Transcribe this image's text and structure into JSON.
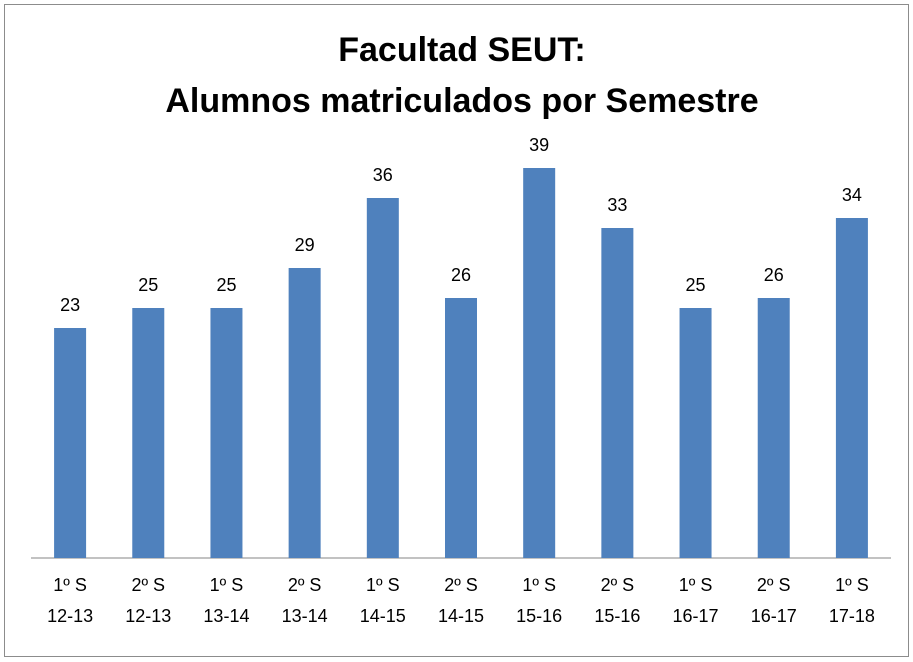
{
  "chart_data": {
    "type": "bar",
    "title": [
      "Facultad SEUT:",
      "Alumnos matriculados por Semestre"
    ],
    "categories": [
      [
        "1º S",
        "12-13"
      ],
      [
        "2º S",
        "12-13"
      ],
      [
        "1º S",
        "13-14"
      ],
      [
        "2º S",
        "13-14"
      ],
      [
        "1º S",
        "14-15"
      ],
      [
        "2º S",
        "14-15"
      ],
      [
        "1º S",
        "15-16"
      ],
      [
        "2º S",
        "15-16"
      ],
      [
        "1º S",
        "16-17"
      ],
      [
        "2º S",
        "16-17"
      ],
      [
        "1º S",
        "17-18"
      ]
    ],
    "values": [
      23,
      25,
      25,
      29,
      36,
      26,
      39,
      33,
      25,
      26,
      34
    ],
    "color": "#4f81bd",
    "ylim": [
      0,
      45
    ]
  }
}
